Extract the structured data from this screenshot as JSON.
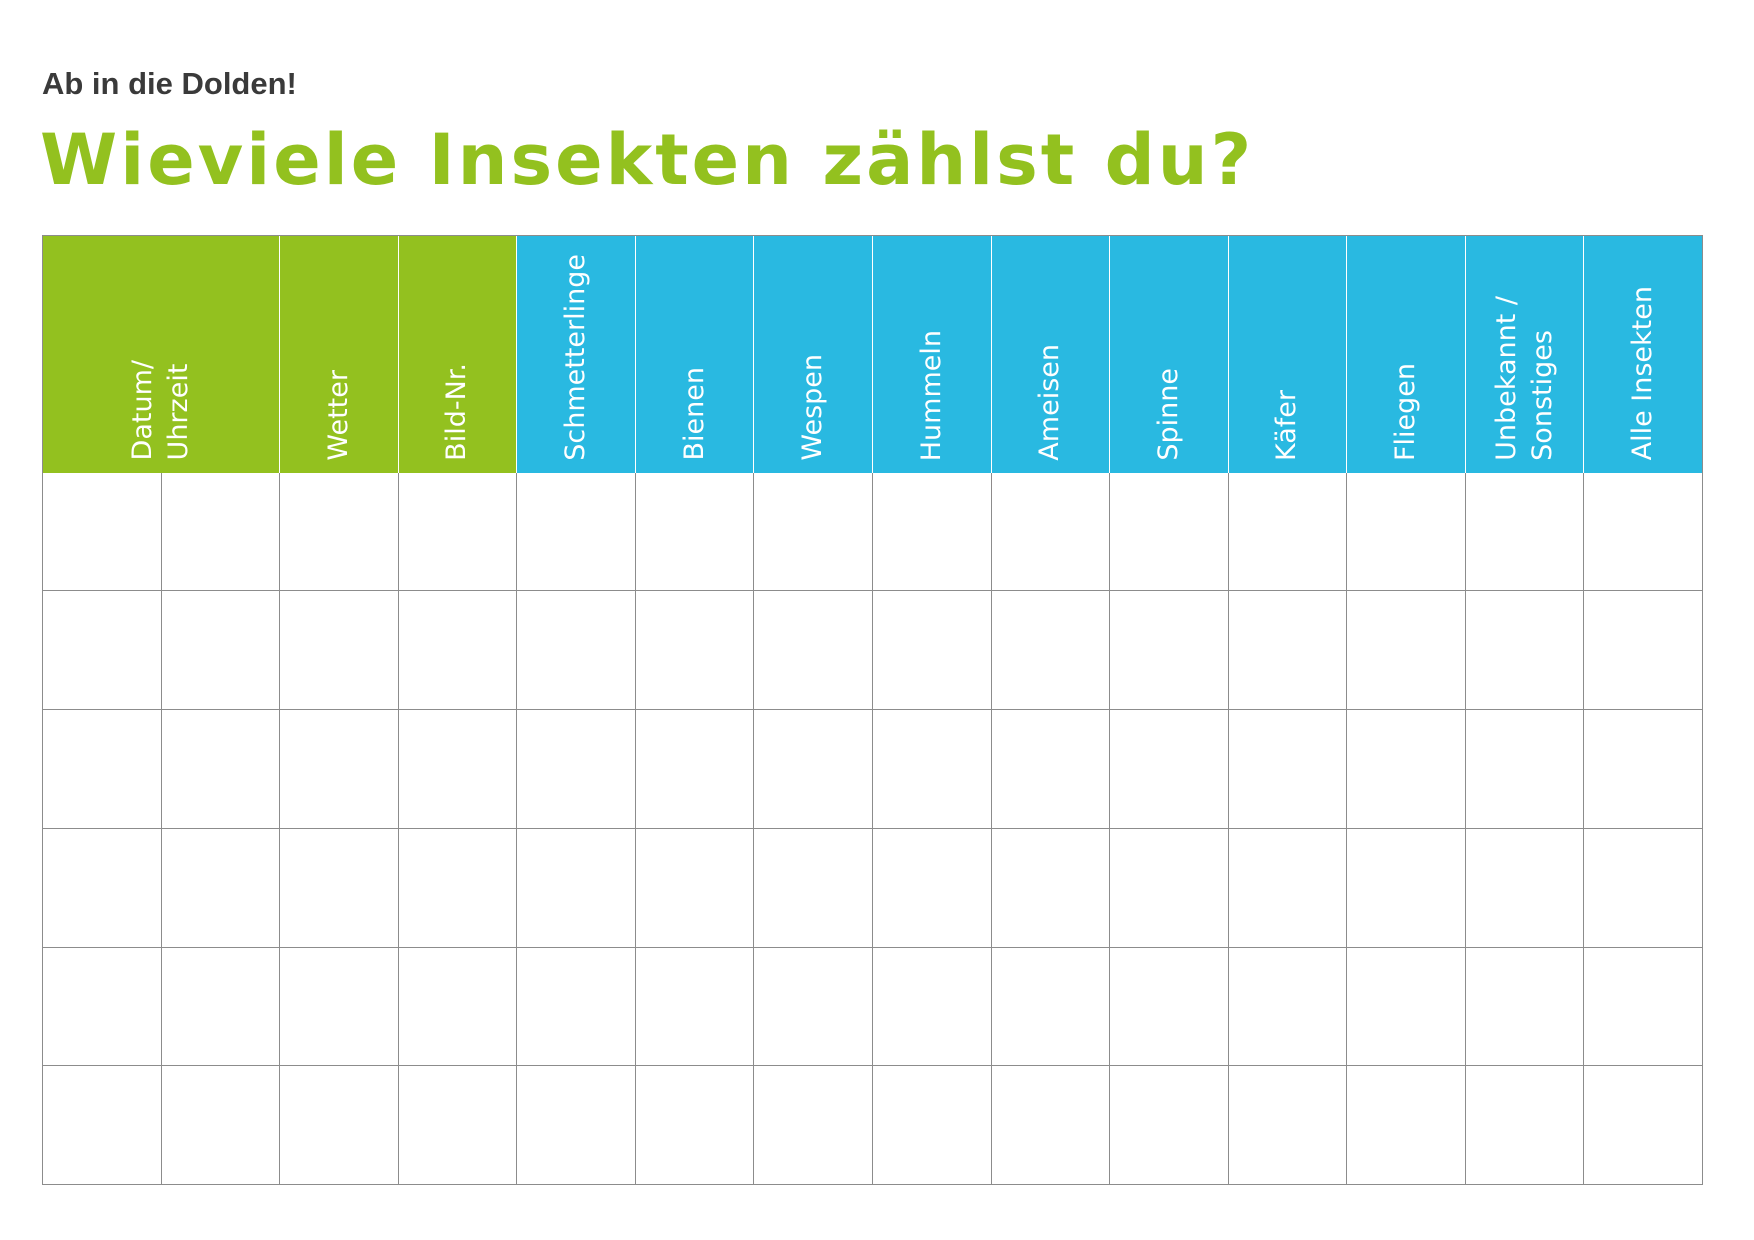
{
  "header": {
    "subtitle": "Ab in die Dolden!",
    "title": "Wieviele Insekten zählst du?"
  },
  "colors": {
    "green": "#93c11f",
    "blue": "#29b9e1",
    "grid_line": "#8c8c8c",
    "subtitle_text": "#3a3a3a"
  },
  "table": {
    "columns": [
      {
        "label": "Datum/\nUhrzeit",
        "color": "green",
        "span": 2
      },
      {
        "label": "Wetter",
        "color": "green",
        "span": 1
      },
      {
        "label": "Bild-Nr.",
        "color": "green",
        "span": 1
      },
      {
        "label": "Schmetterlinge",
        "color": "blue",
        "span": 1
      },
      {
        "label": "Bienen",
        "color": "blue",
        "span": 1
      },
      {
        "label": "Wespen",
        "color": "blue",
        "span": 1
      },
      {
        "label": "Hummeln",
        "color": "blue",
        "span": 1
      },
      {
        "label": "Ameisen",
        "color": "blue",
        "span": 1
      },
      {
        "label": "Spinne",
        "color": "blue",
        "span": 1
      },
      {
        "label": "Käfer",
        "color": "blue",
        "span": 1
      },
      {
        "label": "Fliegen",
        "color": "blue",
        "span": 1
      },
      {
        "label": "Unbekannt /\nSonstiges",
        "color": "blue",
        "span": 1
      },
      {
        "label": "Alle Insekten",
        "color": "blue",
        "span": 1
      }
    ],
    "body_rows": [
      [
        "",
        "",
        "",
        "",
        "",
        "",
        "",
        "",
        "",
        "",
        "",
        "",
        "",
        ""
      ],
      [
        "",
        "",
        "",
        "",
        "",
        "",
        "",
        "",
        "",
        "",
        "",
        "",
        "",
        ""
      ],
      [
        "",
        "",
        "",
        "",
        "",
        "",
        "",
        "",
        "",
        "",
        "",
        "",
        "",
        ""
      ],
      [
        "",
        "",
        "",
        "",
        "",
        "",
        "",
        "",
        "",
        "",
        "",
        "",
        "",
        ""
      ],
      [
        "",
        "",
        "",
        "",
        "",
        "",
        "",
        "",
        "",
        "",
        "",
        "",
        "",
        ""
      ],
      [
        "",
        "",
        "",
        "",
        "",
        "",
        "",
        "",
        "",
        "",
        "",
        "",
        "",
        ""
      ]
    ]
  }
}
